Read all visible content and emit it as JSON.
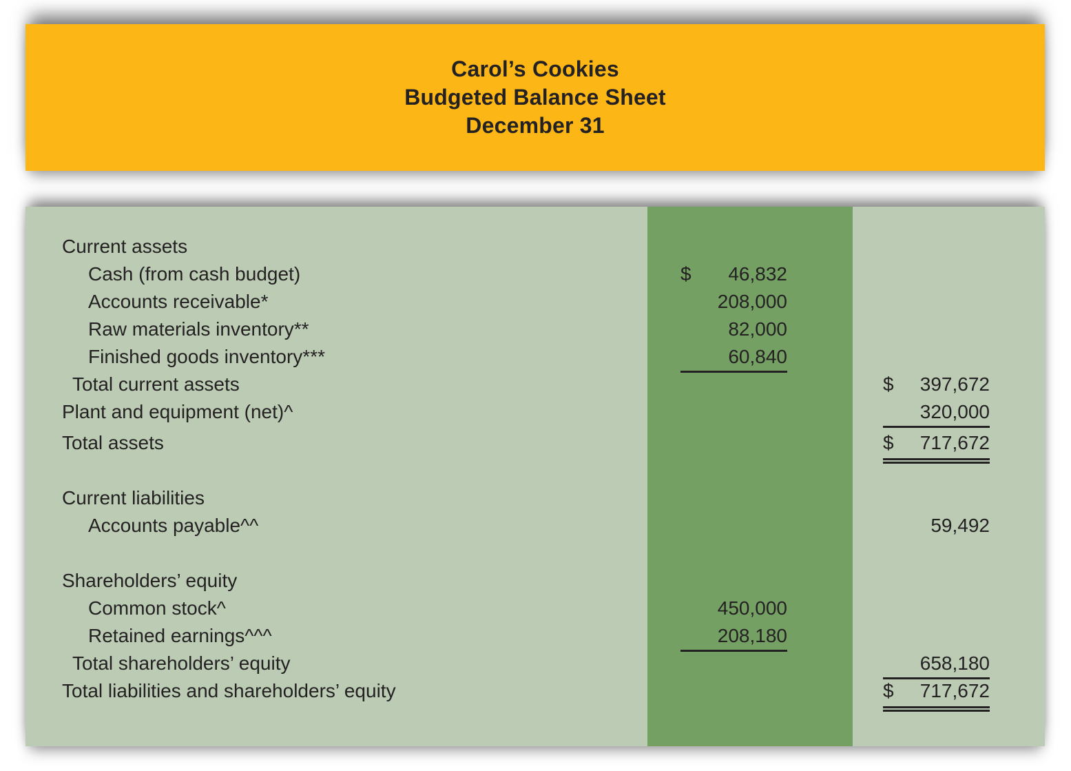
{
  "colors": {
    "page_bg": "#ffffff",
    "header_bg": "#fcb615",
    "table_bg": "#bccbb4",
    "mid_column_bg": "#75a064",
    "ink": "#242122"
  },
  "header": {
    "lines": [
      "Carol’s Cookies",
      "Budgeted Balance Sheet",
      "December 31"
    ]
  },
  "table": {
    "currency_symbol": "$",
    "rows": [
      {
        "label": "Current assets",
        "indent": 0
      },
      {
        "label": "Cash (from cash budget)",
        "indent": 2,
        "col": "mid",
        "currency": "$",
        "value": "46,832"
      },
      {
        "label": "Accounts receivable*",
        "indent": 2,
        "col": "mid",
        "value": "208,000"
      },
      {
        "label": "Raw materials inventory**",
        "indent": 2,
        "col": "mid",
        "value": "82,000"
      },
      {
        "label": "Finished goods inventory***",
        "indent": 2,
        "col": "mid",
        "value": "60,840",
        "rule": "single"
      },
      {
        "label": "Total current assets",
        "indent": 1,
        "col": "right",
        "currency": "$",
        "value": "397,672"
      },
      {
        "label": "Plant and equipment (net)^",
        "indent": 0,
        "col": "right",
        "value": "320,000",
        "rule": "single"
      },
      {
        "label": "Total assets",
        "indent": 0,
        "col": "right",
        "currency": "$",
        "value": "717,672",
        "rule": "double",
        "extra_top": true
      },
      {
        "blank": true
      },
      {
        "label": "Current liabilities",
        "indent": 0
      },
      {
        "label": "Accounts payable^^",
        "indent": 2,
        "col": "right",
        "value": "59,492"
      },
      {
        "blank": true
      },
      {
        "label": "Shareholders’ equity",
        "indent": 0
      },
      {
        "label": "Common stock^",
        "indent": 2,
        "col": "mid",
        "value": "450,000"
      },
      {
        "label": "Retained earnings^^^",
        "indent": 2,
        "col": "mid",
        "value": "208,180",
        "rule": "single"
      },
      {
        "label": "Total shareholders’ equity",
        "indent": 1,
        "col": "right",
        "value": "658,180",
        "rule": "single"
      },
      {
        "label": "Total liabilities and shareholders’ equity",
        "indent": 0,
        "col": "right",
        "currency": "$",
        "value": "717,672",
        "rule": "double"
      }
    ]
  }
}
